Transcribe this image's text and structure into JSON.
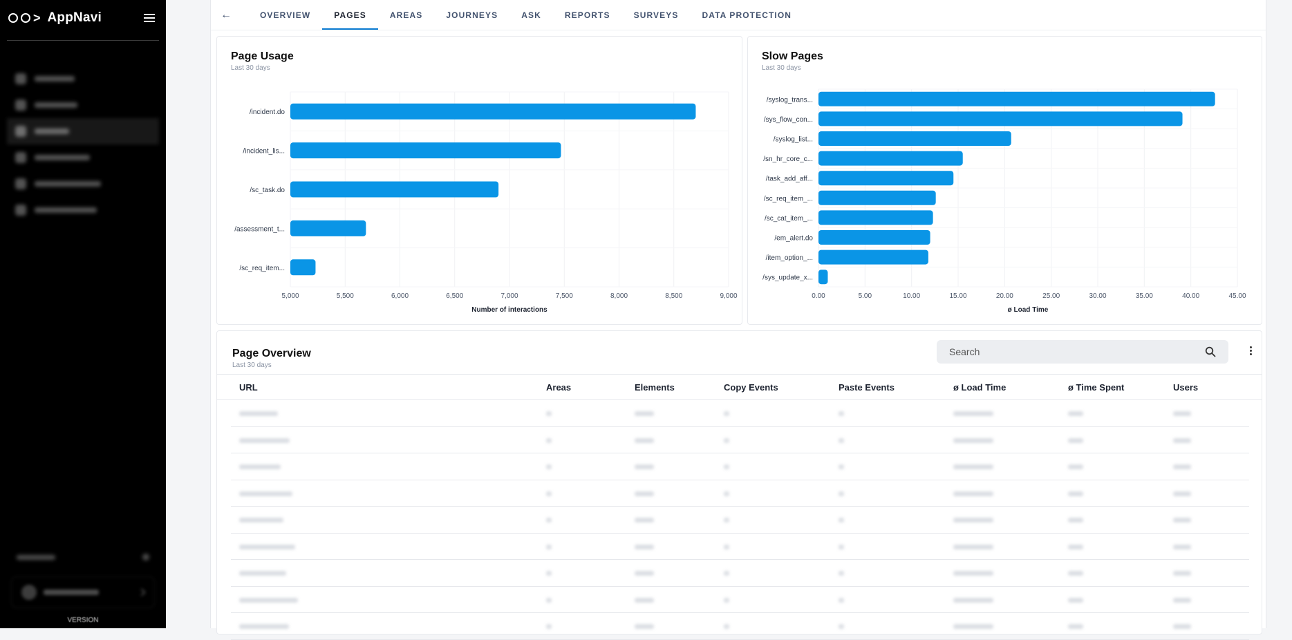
{
  "app": {
    "name": "AppNavi",
    "version": "VERSION"
  },
  "sidebar": {
    "items": [
      {
        "id": "audience"
      },
      {
        "id": "discovery"
      },
      {
        "id": "insights",
        "active": true
      },
      {
        "id": "media-library"
      },
      {
        "id": "target-audience"
      },
      {
        "id": "manage-assets"
      }
    ]
  },
  "tabs": [
    {
      "label": "OVERVIEW"
    },
    {
      "label": "PAGES",
      "active": true
    },
    {
      "label": "AREAS"
    },
    {
      "label": "JOURNEYS"
    },
    {
      "label": "ASK"
    },
    {
      "label": "REPORTS"
    },
    {
      "label": "SURVEYS"
    },
    {
      "label": "DATA PROTECTION"
    }
  ],
  "page_usage": {
    "title": "Page Usage",
    "subtitle": "Last 30 days"
  },
  "slow_pages": {
    "title": "Slow Pages",
    "subtitle": "Last 30 days"
  },
  "page_overview": {
    "title": "Page Overview",
    "subtitle": "Last 30 days",
    "search_placeholder": "Search",
    "columns": [
      "URL",
      "Areas",
      "Elements",
      "Copy Events",
      "Paste Events",
      "ø Load Time",
      "ø Time Spent",
      "Users"
    ],
    "row_count": 9
  },
  "chart_data": [
    {
      "type": "bar",
      "orientation": "horizontal",
      "title": "Page Usage",
      "subtitle": "Last 30 days",
      "xlabel": "Number of interactions",
      "categories": [
        "/incident.do",
        "/incident_lis...",
        "/sc_task.do",
        "/assessment_t...",
        "/sc_req_item..."
      ],
      "values": [
        8700,
        7470,
        6900,
        5690,
        5230
      ],
      "xlim": [
        5000,
        9000
      ],
      "ticks": [
        "5,000",
        "5,500",
        "6,000",
        "6,500",
        "7,000",
        "7,500",
        "8,000",
        "8,500",
        "9,000"
      ],
      "color": "#0a95e6",
      "grid": true
    },
    {
      "type": "bar",
      "orientation": "horizontal",
      "title": "Slow Pages",
      "subtitle": "Last 30 days",
      "xlabel": "ø Load Time",
      "categories": [
        "/syslog_trans...",
        "/sys_flow_con...",
        "/syslog_list...",
        "/sn_hr_core_c...",
        "/task_add_aff...",
        "/sc_req_item_...",
        "/sc_cat_item_...",
        "/em_alert.do",
        "/item_option_...",
        "/sys_update_x..."
      ],
      "values": [
        42.6,
        39.1,
        20.7,
        15.5,
        14.5,
        12.6,
        12.3,
        12.0,
        11.8,
        1.0
      ],
      "xlim": [
        0,
        45
      ],
      "ticks": [
        "0.00",
        "5.00",
        "10.00",
        "15.00",
        "20.00",
        "25.00",
        "30.00",
        "35.00",
        "40.00",
        "45.00"
      ],
      "color": "#0a95e6",
      "grid": true
    }
  ]
}
